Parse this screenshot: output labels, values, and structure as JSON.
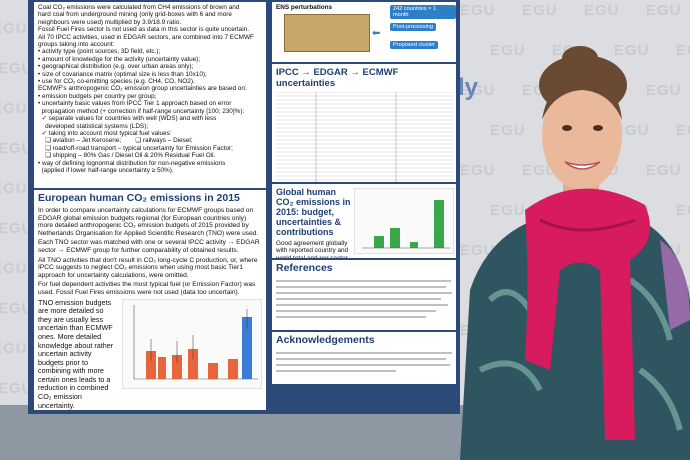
{
  "poster": {
    "intro": {
      "lines": [
        "Coal CO₂ emissions were calculated from CH4 emissions of brown and",
        "hard coal from underground mining (only grid-boxes with 6 and more",
        "neighbours were used) multiplied by 3.9/18.9 ratio.",
        "Fossil Fuel Fires sector is not used as data in this sector is quite uncertain.",
        "All 70 IPCC activities, used in EDGAR sectors, are combined into 7 ECMWF",
        "groups taking into account:",
        "• activity type (point sources, 3D field, etc.);",
        "• amount of knowledge for the activity (uncertainty value);",
        "• geographical distribution (e.g. over urban areas only);",
        "• size of covariance matrix (optimal size is less than 10x10);",
        "• use for CO₂ co-emitting species (e.g. CH4, CO, NO2).",
        "ECMWF's anthropogenic CO₂ emission group uncertainties are based on:",
        "• emission budgets per country per group;",
        "• uncertainty basic values from IPCC Tier 1 approach based on error",
        "  propagation method (+ correction if half-range uncertainty [100; 230]%):",
        "  ✓ separate values for countries with well (WDS) and with less",
        "    developed statistical systems (LDS);",
        "  ✓ taking into account most typical fuel values:",
        "    ❑ aviation – Jet Kerosene;        ❑ railways – Diesel;",
        "    ❑ road/off-road transport – typical uncertainty for Emission Factor;",
        "    ❑ shipping – 80% Gas / Diesel Oil & 20% Residual Fuel Oil.",
        "• way of defining lognormal distribution for non-negative emissions",
        "  (applied if lower half-range uncertainty ≥ 50%)."
      ]
    },
    "section1": {
      "title": "European human CO₂ emissions in 2015",
      "paragraphs": [
        "In order to compare uncertainty calculations for ECMWF groups based on EDGAR global emission budgets regional (for European countries only) more detailed anthropogenic CO₂ emission budgets of 2015 provided by Netherlands Organisation for Applied Scientific Research (TNO) were used.",
        "Each TNO sector was matched with one or several IPCC activity → EDGAR sector → ECMWF group for further comparability of obtained results.",
        "All TNO activities that don't result in CO₂ long-cycle C production, or, where IPCC suggests to neglect CO₂ emissions when using most basic Tier1 approach for uncertainty calculations, were omitted.",
        "For fuel dependent activities the most typical fuel (or Emission Factor) was used. Fossil Fuel Fires emissions were not used (data too uncertain)."
      ],
      "side_text": "TNO emission budgets are more detailed so they are usually less uncertain than ECMWF ones. More detailed knowledge about rather uncertain activity budgets prior to combining with more certain ones leads to a reduction in combined CO₂ emission uncertainty."
    },
    "diagram": {
      "label": "ENS perturbations",
      "boxes": [
        "242 countries × 1 month",
        "Post-processing",
        "Proposed cluster"
      ]
    },
    "section2": {
      "title": "IPCC → EDGAR → ECMWF uncertainties"
    },
    "section3": {
      "title": "Global human CO₂ emissions in 2015: budget, uncertainties & contributions",
      "text": "Good agreement globally with reported country and world total and per sector budgets."
    },
    "references": {
      "title": "References"
    },
    "acknowledgements": {
      "title": "Acknowledgements"
    }
  },
  "backdrop": {
    "logo": "EGU",
    "banner_fragment": "ly"
  }
}
